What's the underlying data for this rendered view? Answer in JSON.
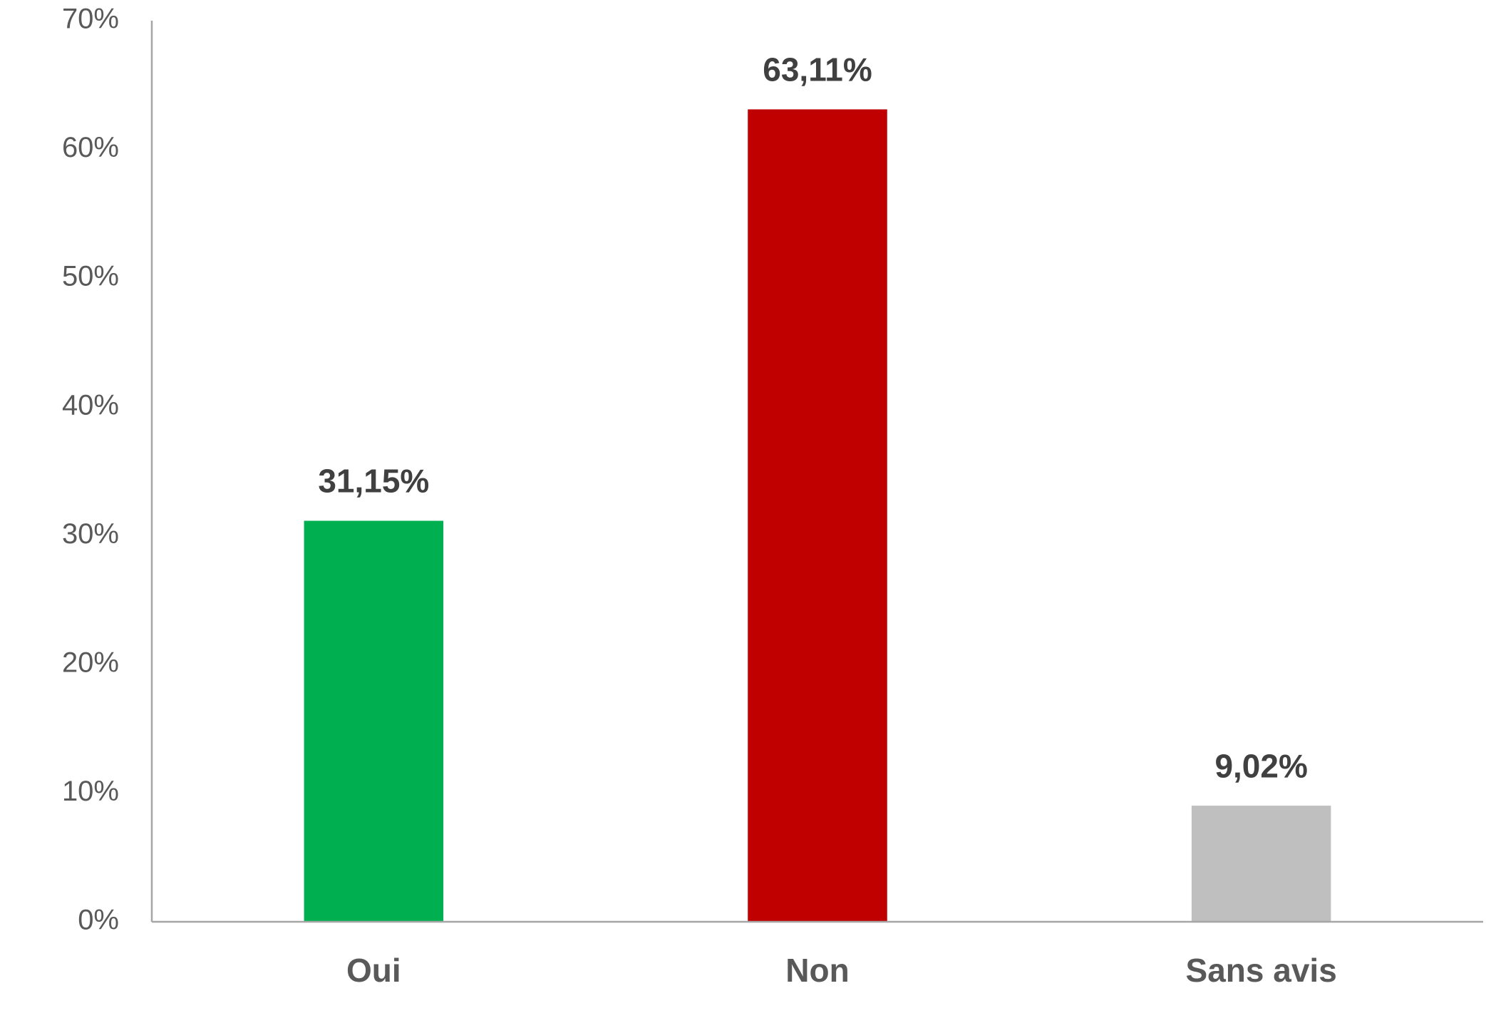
{
  "chart_data": {
    "type": "bar",
    "categories": [
      "Oui",
      "Non",
      "Sans avis"
    ],
    "values": [
      31.15,
      63.11,
      9.02
    ],
    "value_labels": [
      "31,15%",
      "63,11%",
      "9,02%"
    ],
    "colors": [
      "#00b050",
      "#c00000",
      "#bfbfbf"
    ],
    "ylim": [
      0,
      70
    ],
    "yticks": [
      {
        "value": 0,
        "label": "0%"
      },
      {
        "value": 10,
        "label": "10%"
      },
      {
        "value": 20,
        "label": "20%"
      },
      {
        "value": 30,
        "label": "30%"
      },
      {
        "value": 40,
        "label": "40%"
      },
      {
        "value": 50,
        "label": "50%"
      },
      {
        "value": 60,
        "label": "60%"
      },
      {
        "value": 70,
        "label": "70%"
      }
    ],
    "grid": false
  }
}
